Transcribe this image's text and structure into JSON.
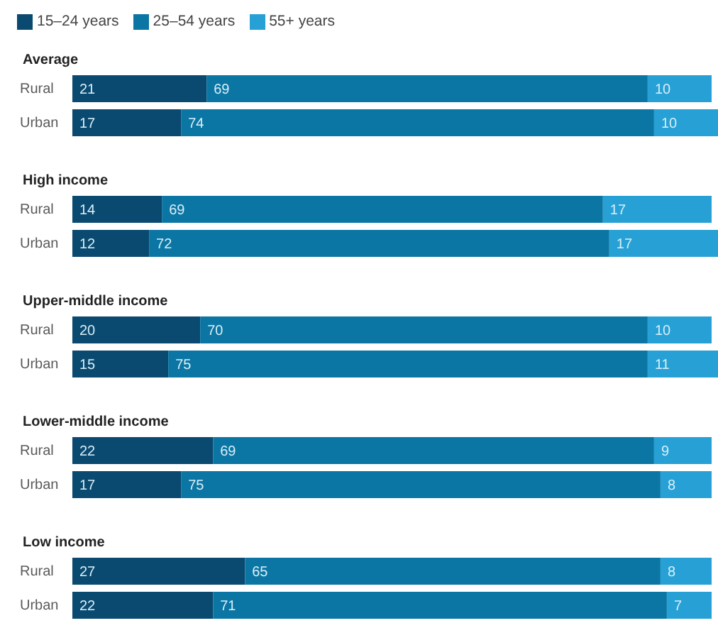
{
  "chart_data": [
    {
      "type": "bar",
      "orientation": "horizontal",
      "stacked": true,
      "title": "Average",
      "categories": [
        "Rural",
        "Urban"
      ],
      "series": [
        {
          "name": "15–24 years",
          "color": "#0b4a70",
          "values": [
            21,
            17
          ]
        },
        {
          "name": "25–54 years",
          "color": "#0b76a3",
          "values": [
            69,
            74
          ]
        },
        {
          "name": "55+ years",
          "color": "#27a1d5",
          "values": [
            10,
            10
          ]
        }
      ],
      "data_labels": true,
      "legend": "top left",
      "tick_labels": "y"
    },
    {
      "type": "bar",
      "orientation": "horizontal",
      "stacked": true,
      "title": "High income",
      "categories": [
        "Rural",
        "Urban"
      ],
      "series": [
        {
          "color": "#0b4a70",
          "values": [
            14,
            12
          ]
        },
        {
          "color": "#0b76a3",
          "values": [
            69,
            72
          ]
        },
        {
          "color": "#27a1d5",
          "values": [
            17,
            17
          ]
        }
      ],
      "data_labels": true,
      "tick_labels": "y"
    },
    {
      "type": "bar",
      "orientation": "horizontal",
      "stacked": true,
      "title": "Upper-middle income",
      "categories": [
        "Rural",
        "Urban"
      ],
      "series": [
        {
          "color": "#0b4a70",
          "values": [
            20,
            15
          ]
        },
        {
          "color": "#0b76a3",
          "values": [
            70,
            75
          ]
        },
        {
          "color": "#27a1d5",
          "values": [
            10,
            11
          ]
        }
      ],
      "data_labels": true,
      "tick_labels": "y"
    },
    {
      "type": "bar",
      "orientation": "horizontal",
      "stacked": true,
      "title": "Lower-middle income",
      "categories": [
        "Rural",
        "Urban"
      ],
      "series": [
        {
          "color": "#0b4a70",
          "values": [
            22,
            17
          ]
        },
        {
          "color": "#0b76a3",
          "values": [
            69,
            75
          ]
        },
        {
          "color": "#27a1d5",
          "values": [
            9,
            8
          ]
        }
      ],
      "data_labels": true,
      "tick_labels": "y"
    },
    {
      "type": "bar",
      "orientation": "horizontal",
      "stacked": true,
      "title": "Low income",
      "categories": [
        "Rural",
        "Urban"
      ],
      "series": [
        {
          "color": "#0b4a70",
          "values": [
            27,
            22
          ]
        },
        {
          "color": "#0b76a3",
          "values": [
            65,
            71
          ]
        },
        {
          "color": "#27a1d5",
          "values": [
            8,
            7
          ]
        }
      ],
      "data_labels": true,
      "tick_labels": "y"
    }
  ]
}
